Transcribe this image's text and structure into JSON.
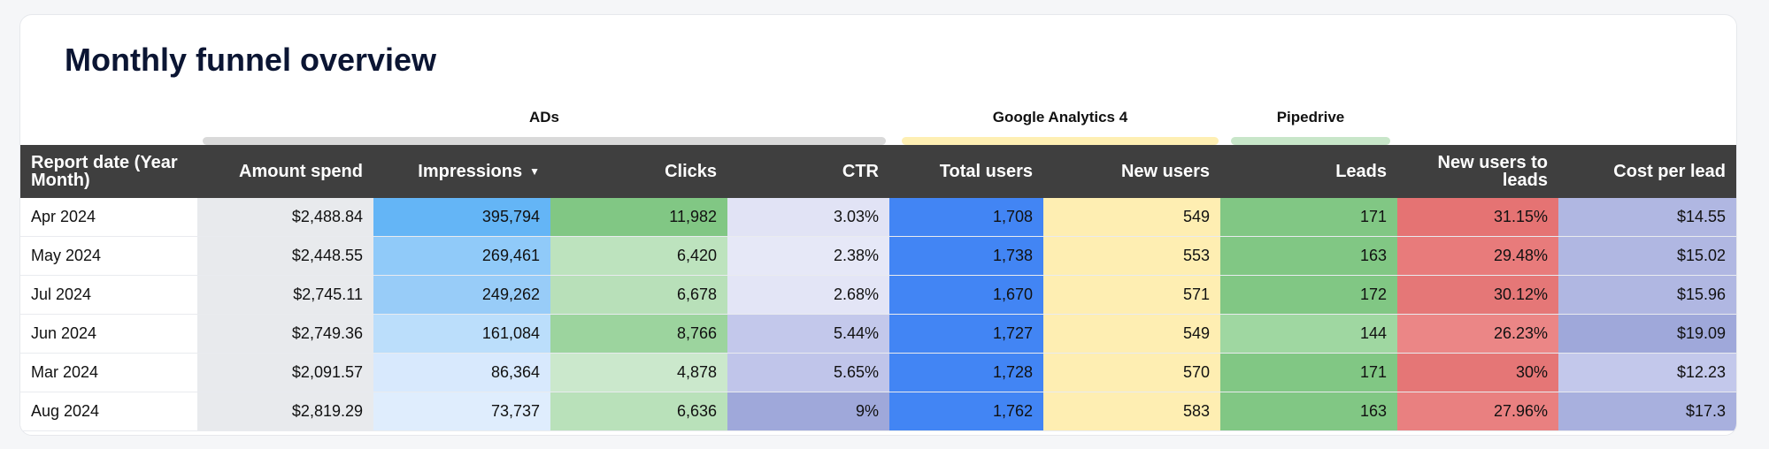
{
  "title": "Monthly funnel overview",
  "groups": {
    "ads": {
      "label": "ADs",
      "color": "#d9d9d9"
    },
    "ga4": {
      "label": "Google Analytics 4",
      "color": "#feefb3"
    },
    "pipedrive": {
      "label": "Pipedrive",
      "color": "#c8e6c9"
    }
  },
  "columns": {
    "report_date": "Report date (Year Month)",
    "amount_spend": "Amount spend",
    "impressions": "Impressions",
    "clicks": "Clicks",
    "ctr": "CTR",
    "total_users": "Total users",
    "new_users": "New users",
    "leads": "Leads",
    "new_users_to_leads": "New users to leads",
    "cost_per_lead": "Cost per lead"
  },
  "sort_icon": "caret-down-icon",
  "rows": [
    {
      "date": "Apr 2024",
      "amount": "$2,488.84",
      "impressions": "395,794",
      "clicks": "11,982",
      "ctr": "3.03%",
      "total_users": "1,708",
      "new_users": "549",
      "leads": "171",
      "conv": "31.15%",
      "cpl": "$14.55",
      "colors": {
        "amount": "#e8eaed",
        "impressions": "#64b5f6",
        "clicks": "#81c784",
        "ctr": "#e1e3f5",
        "total_users": "#4285f4",
        "new_users": "#feeeb2",
        "leads": "#81c784",
        "conv": "#e57373",
        "cpl": "#b0b7e2"
      }
    },
    {
      "date": "May 2024",
      "amount": "$2,448.55",
      "impressions": "269,461",
      "clicks": "6,420",
      "ctr": "2.38%",
      "total_users": "1,738",
      "new_users": "553",
      "leads": "163",
      "conv": "29.48%",
      "cpl": "$15.02",
      "colors": {
        "amount": "#e8eaed",
        "impressions": "#90caf9",
        "clicks": "#bde3be",
        "ctr": "#e6e8f7",
        "total_users": "#4285f4",
        "new_users": "#feeeb2",
        "leads": "#81c784",
        "conv": "#e87b7b",
        "cpl": "#b0b7e2"
      }
    },
    {
      "date": "Jul 2024",
      "amount": "$2,745.11",
      "impressions": "249,262",
      "clicks": "6,678",
      "ctr": "2.68%",
      "total_users": "1,670",
      "new_users": "571",
      "leads": "172",
      "conv": "30.12%",
      "cpl": "$15.96",
      "colors": {
        "amount": "#e8eaed",
        "impressions": "#98ccf8",
        "clicks": "#b8e0b9",
        "ctr": "#e3e5f6",
        "total_users": "#4285f4",
        "new_users": "#feeeb2",
        "leads": "#81c784",
        "conv": "#e57777",
        "cpl": "#b0b7e2"
      }
    },
    {
      "date": "Jun 2024",
      "amount": "$2,749.36",
      "impressions": "161,084",
      "clicks": "8,766",
      "ctr": "5.44%",
      "total_users": "1,727",
      "new_users": "549",
      "leads": "144",
      "conv": "26.23%",
      "cpl": "$19.09",
      "colors": {
        "amount": "#e8eaed",
        "impressions": "#bbdefb",
        "clicks": "#9cd49e",
        "ctr": "#c3c8eb",
        "total_users": "#4285f4",
        "new_users": "#feeeb2",
        "leads": "#9fd7a1",
        "conv": "#eb8686",
        "cpl": "#9fa8da"
      }
    },
    {
      "date": "Mar 2024",
      "amount": "$2,091.57",
      "impressions": "86,364",
      "clicks": "4,878",
      "ctr": "5.65%",
      "total_users": "1,728",
      "new_users": "570",
      "leads": "171",
      "conv": "30%",
      "cpl": "$12.23",
      "colors": {
        "amount": "#e8eaed",
        "impressions": "#d8e9fd",
        "clicks": "#cbe8cc",
        "ctr": "#c0c5ea",
        "total_users": "#4285f4",
        "new_users": "#feeeb2",
        "leads": "#81c784",
        "conv": "#e57676",
        "cpl": "#c3c8eb"
      }
    },
    {
      "date": "Aug 2024",
      "amount": "$2,819.29",
      "impressions": "73,737",
      "clicks": "6,636",
      "ctr": "9%",
      "total_users": "1,762",
      "new_users": "583",
      "leads": "163",
      "conv": "27.96%",
      "cpl": "$17.3",
      "colors": {
        "amount": "#e8eaed",
        "impressions": "#dfedfd",
        "clicks": "#b9e1ba",
        "ctr": "#9fa8da",
        "total_users": "#4285f4",
        "new_users": "#feeeb2",
        "leads": "#81c784",
        "conv": "#e98080",
        "cpl": "#a8b0de"
      }
    }
  ]
}
